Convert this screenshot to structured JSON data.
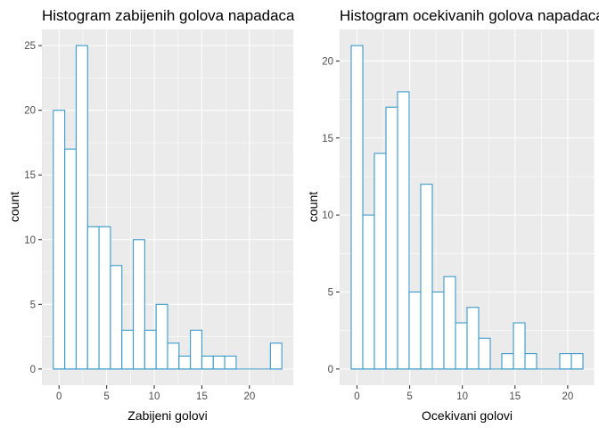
{
  "chart_data": [
    {
      "type": "bar",
      "title": "Histogram zabijenih golova napadaca",
      "xlabel": "Zabijeni golovi",
      "ylabel": "count",
      "binwidth": 1.2,
      "bins": [
        {
          "center": 0.0,
          "count": 20
        },
        {
          "center": 1.2,
          "count": 17
        },
        {
          "center": 2.4,
          "count": 25
        },
        {
          "center": 3.6,
          "count": 11
        },
        {
          "center": 4.8,
          "count": 11
        },
        {
          "center": 6.0,
          "count": 8
        },
        {
          "center": 7.2,
          "count": 3
        },
        {
          "center": 8.4,
          "count": 10
        },
        {
          "center": 9.6,
          "count": 3
        },
        {
          "center": 10.8,
          "count": 5
        },
        {
          "center": 12.0,
          "count": 2
        },
        {
          "center": 13.2,
          "count": 1
        },
        {
          "center": 14.4,
          "count": 3
        },
        {
          "center": 15.6,
          "count": 1
        },
        {
          "center": 16.8,
          "count": 1
        },
        {
          "center": 18.0,
          "count": 1
        },
        {
          "center": 19.2,
          "count": 0
        },
        {
          "center": 20.4,
          "count": 0
        },
        {
          "center": 21.6,
          "count": 0
        },
        {
          "center": 22.8,
          "count": 2
        }
      ],
      "xlim": [
        -1.8,
        24.6
      ],
      "ylim": [
        -1.25,
        26.25
      ],
      "xticks": [
        0,
        5,
        10,
        15,
        20
      ],
      "yticks": [
        0,
        5,
        10,
        15,
        20,
        25
      ],
      "xtick_labels": [
        "0",
        "5",
        "10",
        "15",
        "20"
      ],
      "ytick_labels": [
        "0",
        "5",
        "10",
        "15",
        "20",
        "25"
      ]
    },
    {
      "type": "bar",
      "title": "Histogram ocekivanih golova napadaca",
      "xlabel": "Ocekivani golovi",
      "ylabel": "count",
      "binwidth": 1.1,
      "bins": [
        {
          "center": 0.0,
          "count": 21
        },
        {
          "center": 1.1,
          "count": 10
        },
        {
          "center": 2.2,
          "count": 14
        },
        {
          "center": 3.3,
          "count": 17
        },
        {
          "center": 4.4,
          "count": 18
        },
        {
          "center": 5.5,
          "count": 5
        },
        {
          "center": 6.6,
          "count": 12
        },
        {
          "center": 7.7,
          "count": 5
        },
        {
          "center": 8.8,
          "count": 6
        },
        {
          "center": 9.9,
          "count": 3
        },
        {
          "center": 11.0,
          "count": 4
        },
        {
          "center": 12.1,
          "count": 2
        },
        {
          "center": 13.2,
          "count": 0
        },
        {
          "center": 14.3,
          "count": 1
        },
        {
          "center": 15.4,
          "count": 3
        },
        {
          "center": 16.5,
          "count": 1
        },
        {
          "center": 17.6,
          "count": 0
        },
        {
          "center": 18.7,
          "count": 0
        },
        {
          "center": 19.8,
          "count": 1
        },
        {
          "center": 20.9,
          "count": 1
        }
      ],
      "xlim": [
        -1.65,
        22.55
      ],
      "ylim": [
        -1.05,
        22.05
      ],
      "xticks": [
        0,
        5,
        10,
        15,
        20
      ],
      "yticks": [
        0,
        5,
        10,
        15,
        20
      ],
      "xtick_labels": [
        "0",
        "5",
        "10",
        "15",
        "20"
      ],
      "ytick_labels": [
        "0",
        "5",
        "10",
        "15",
        "20"
      ]
    }
  ]
}
